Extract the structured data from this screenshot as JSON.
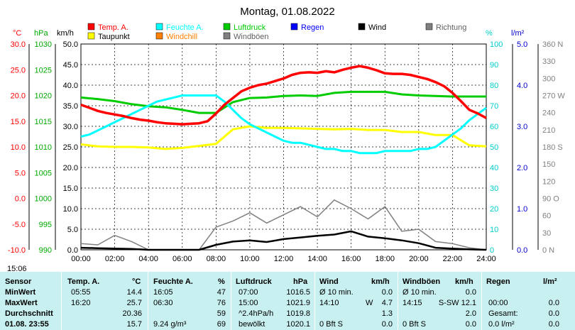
{
  "title": "Montag, 01.08.2022",
  "time_label": "15:06",
  "legend": [
    {
      "label": "Temp. A.",
      "color": "#ff0000"
    },
    {
      "label": "Feuchte A.",
      "color": "#00ffff"
    },
    {
      "label": "Luftdruck",
      "color": "#00cc00"
    },
    {
      "label": "Regen",
      "color": "#0000ff"
    },
    {
      "label": "Wind",
      "color": "#000000"
    },
    {
      "label": "Richtung",
      "color": "#808080"
    },
    {
      "label": "Taupunkt",
      "color": "#ffff00"
    },
    {
      "label": "Windchill",
      "color": "#ff8000"
    },
    {
      "label": "Windböen",
      "color": "#808080"
    }
  ],
  "axes": {
    "temp": {
      "unit": "°C",
      "ticks": [
        "30.0",
        "25.0",
        "20.0",
        "15.0",
        "10.0",
        "5.0",
        "0.0",
        "-5.0",
        "-10.0"
      ],
      "color": "#ff0000"
    },
    "pressure": {
      "unit": "hPa",
      "ticks": [
        "1030",
        "1025",
        "1020",
        "1015",
        "1010",
        "1005",
        "1000",
        "995",
        "990"
      ],
      "color": "#00aa00"
    },
    "wind": {
      "unit": "km/h",
      "ticks": [
        "50.0",
        "45.0",
        "40.0",
        "35.0",
        "30.0",
        "25.0",
        "20.0",
        "15.0",
        "10.0",
        "5.0",
        "0.0"
      ],
      "color": "#000000"
    },
    "humidity": {
      "unit": "%",
      "ticks": [
        "100",
        "90",
        "80",
        "70",
        "60",
        "50",
        "40",
        "30",
        "20",
        "10",
        "0"
      ],
      "color": "#00cccc"
    },
    "rain": {
      "unit": "l/m²",
      "ticks": [
        "5.0",
        "4.0",
        "3.0",
        "2.0",
        "1.0",
        "0.0"
      ],
      "color": "#0000cc"
    },
    "direction": {
      "ticks": [
        "360 N",
        "330",
        "300",
        "270 W",
        "240",
        "210",
        "180 S",
        "150",
        "120",
        "90 O",
        "60",
        "30",
        "0 N"
      ],
      "color": "#808080"
    },
    "x_ticks": [
      "00:00",
      "02:00",
      "04:00",
      "06:00",
      "08:00",
      "10:00",
      "12:00",
      "14:00",
      "16:00",
      "18:00",
      "20:00",
      "22:00",
      "24:00"
    ]
  },
  "chart_data": {
    "type": "line",
    "title": "Montag, 01.08.2022",
    "x_unit": "hour",
    "x_range": [
      0,
      24
    ],
    "series": [
      {
        "name": "Temp. A.",
        "unit": "°C",
        "color": "#ff0000",
        "x": [
          0,
          0.5,
          1,
          1.5,
          2,
          2.5,
          3,
          3.5,
          4,
          4.5,
          5,
          5.5,
          6,
          6.5,
          7,
          7.5,
          8,
          8.5,
          9,
          9.5,
          10,
          10.5,
          11,
          11.5,
          12,
          12.5,
          13,
          13.5,
          14,
          14.5,
          15,
          15.5,
          16,
          16.5,
          17,
          17.5,
          18,
          18.5,
          19,
          19.5,
          20,
          20.5,
          21,
          21.5,
          22,
          22.5,
          23,
          23.5,
          24
        ],
        "y": [
          18.2,
          17.6,
          17.0,
          16.6,
          16.3,
          16.0,
          15.6,
          15.3,
          15.1,
          14.8,
          14.6,
          14.5,
          14.4,
          14.5,
          14.6,
          15.0,
          16.5,
          18.2,
          19.5,
          20.8,
          21.5,
          22.0,
          22.3,
          22.8,
          23.3,
          24.0,
          24.4,
          24.5,
          24.4,
          24.7,
          24.5,
          25.0,
          25.4,
          25.7,
          25.4,
          24.9,
          24.3,
          24.2,
          24.2,
          24.0,
          23.6,
          23.2,
          22.6,
          21.8,
          20.5,
          18.9,
          17.2,
          16.5,
          15.6
        ]
      },
      {
        "name": "Feuchte A.",
        "unit": "%",
        "color": "#00ffff",
        "x": [
          0,
          0.5,
          1,
          1.5,
          2,
          2.5,
          3,
          3.5,
          4,
          4.5,
          5,
          5.5,
          6,
          6.5,
          7,
          7.5,
          8,
          8.5,
          9,
          9.5,
          10,
          10.5,
          11,
          11.5,
          12,
          12.5,
          13,
          13.5,
          14,
          14.5,
          15,
          15.5,
          16,
          16.5,
          17,
          17.5,
          18,
          18.5,
          19,
          19.5,
          20,
          20.5,
          21,
          21.5,
          22,
          22.5,
          23,
          23.5,
          24
        ],
        "y": [
          55,
          56,
          58,
          60,
          62,
          64,
          66,
          68,
          70,
          72,
          73,
          74,
          75,
          75,
          75,
          75,
          75,
          72,
          68,
          64,
          61,
          59,
          57,
          55,
          53,
          52,
          52,
          51,
          50,
          49,
          49,
          48,
          48,
          47,
          47,
          47,
          48,
          48,
          48,
          48,
          49,
          49,
          50,
          53,
          56,
          59,
          63,
          66,
          69
        ]
      },
      {
        "name": "Luftdruck",
        "unit": "hPa",
        "color": "#00cc00",
        "x": [
          0,
          1,
          2,
          3,
          4,
          5,
          6,
          7,
          8,
          9,
          10,
          11,
          12,
          13,
          14,
          15,
          16,
          17,
          18,
          19,
          20,
          21,
          22,
          23,
          24
        ],
        "y": [
          1019.6,
          1019.3,
          1018.9,
          1018.3,
          1017.9,
          1017.7,
          1017.2,
          1016.6,
          1016.6,
          1018.7,
          1019.5,
          1019.6,
          1019.9,
          1020.0,
          1019.9,
          1020.5,
          1020.7,
          1020.7,
          1020.7,
          1020.2,
          1020.0,
          1019.9,
          1019.8,
          1019.8,
          1019.8
        ]
      },
      {
        "name": "Taupunkt",
        "unit": "°C",
        "color": "#ffff00",
        "x": [
          0,
          1,
          2,
          3,
          4,
          5,
          6,
          7,
          8,
          9,
          10,
          11,
          12,
          13,
          14,
          15,
          16,
          17,
          18,
          19,
          20,
          21,
          22,
          23,
          24
        ],
        "y": [
          10.5,
          10.1,
          10.0,
          10.0,
          9.9,
          9.6,
          9.8,
          10.2,
          10.6,
          13.4,
          14.0,
          13.7,
          13.7,
          13.6,
          13.5,
          13.4,
          13.5,
          13.3,
          13.3,
          12.9,
          12.9,
          12.3,
          12.3,
          10.3,
          10.1
        ]
      },
      {
        "name": "Wind",
        "unit": "km/h",
        "color": "#000000",
        "x": [
          0,
          1,
          2,
          3,
          4,
          5,
          6,
          7,
          8,
          9,
          10,
          11,
          12,
          13,
          14,
          15,
          16,
          17,
          18,
          19,
          20,
          21,
          22,
          23,
          24
        ],
        "y": [
          0.5,
          0.4,
          0.3,
          0.2,
          0.0,
          0.0,
          0.0,
          0.0,
          1.2,
          2.0,
          2.3,
          1.9,
          2.6,
          3.0,
          3.4,
          3.7,
          4.5,
          3.2,
          2.8,
          2.3,
          1.6,
          0.5,
          0.3,
          0.1,
          0.0
        ]
      },
      {
        "name": "Windböen",
        "unit": "km/h",
        "color": "#808080",
        "x": [
          0,
          1,
          2,
          3,
          4,
          5,
          6,
          7,
          8,
          9,
          10,
          11,
          12,
          13,
          14,
          15,
          16,
          17,
          18,
          19,
          20,
          21,
          22,
          23,
          24
        ],
        "y": [
          1.5,
          1.2,
          3.5,
          2.0,
          0.0,
          0.0,
          0.0,
          0.0,
          5.5,
          7.0,
          9.0,
          6.5,
          8.5,
          10.5,
          8.0,
          12.1,
          10.0,
          7.5,
          10.5,
          4.5,
          5.0,
          2.0,
          1.5,
          0.5,
          0.0
        ]
      }
    ]
  },
  "stats": {
    "headers": {
      "sensor": "Sensor",
      "temp": "Temp. A.",
      "temp_unit": "°C",
      "hum": "Feuchte A.",
      "hum_unit": "%",
      "press": "Luftdruck",
      "press_unit": "hPa",
      "wind": "Wind",
      "wind_unit": "km/h",
      "gust": "Windböen",
      "gust_unit": "km/h",
      "rain": "Regen",
      "rain_unit": "l/m²"
    },
    "rows": [
      {
        "label": "MinWert",
        "temp_time": "05:55",
        "temp": "14.4",
        "hum_time": "16:05",
        "hum": "47",
        "press_time": "07:00",
        "press": "1016.5",
        "wind_time": "Ø 10 min.",
        "wind_dir": "",
        "wind": "0.0",
        "gust_time": "Ø 10 min.",
        "gust": "0.0",
        "rain_label": "",
        "rain": ""
      },
      {
        "label": "MaxWert",
        "temp_time": "16:20",
        "temp": "25.7",
        "hum_time": "06:30",
        "hum": "76",
        "press_time": "15:00",
        "press": "1021.9",
        "wind_time": "14:10",
        "wind_dir": "W",
        "wind": "4.7",
        "gust_time": "14:15",
        "gust": "S-SW 12.1",
        "rain_label": "00:00",
        "rain": "0.0"
      },
      {
        "label": "Durchschnitt",
        "temp_time": "",
        "temp": "20.36",
        "hum_time": "",
        "hum": "59",
        "press_time": "^2.4hPa/h",
        "press": "1019.8",
        "wind_time": "",
        "wind_dir": "",
        "wind": "1.3",
        "gust_time": "",
        "gust": "2.0",
        "rain_label": "Gesamt:",
        "rain": "0.0"
      },
      {
        "label": "01.08. 23:55",
        "temp_time": "",
        "temp": "15.7",
        "hum_time": "9.24 g/m³",
        "hum": "69",
        "press_time": "bewölkt",
        "press": "1020.1",
        "wind_time": "0 Bft S",
        "wind_dir": "",
        "wind": "0.0",
        "gust_time": "0 Bft S",
        "gust": "0.0",
        "rain_label": "0.0 l/m²",
        "rain": "0.0"
      }
    ]
  }
}
